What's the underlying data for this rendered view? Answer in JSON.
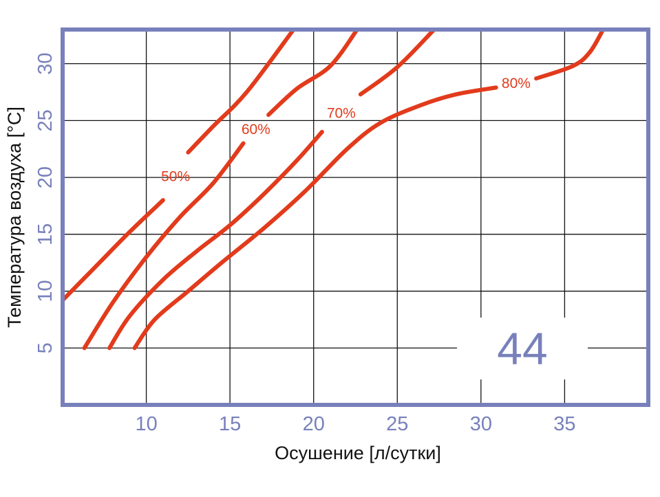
{
  "chart_data": {
    "type": "line",
    "xlabel": "Осушение [л/сутки]",
    "ylabel": "Температура воздуха [°C]",
    "xlim": [
      5,
      40
    ],
    "ylim": [
      0,
      33
    ],
    "xticks": [
      10,
      15,
      20,
      25,
      30,
      35
    ],
    "yticks": [
      5,
      10,
      15,
      20,
      25,
      30
    ],
    "grid": true,
    "annotation": "44",
    "colors": {
      "curve": "#e23b1c",
      "frame": "#7880bb",
      "grid": "#111111"
    },
    "series": [
      {
        "name": "50%",
        "points": [
          [
            5,
            9.2
          ],
          [
            7,
            12.2
          ],
          [
            9,
            15.2
          ],
          [
            11,
            18
          ],
          [
            12.5,
            22.2
          ],
          [
            14,
            24.5
          ],
          [
            16,
            27.5
          ],
          [
            18.8,
            33
          ]
        ]
      },
      {
        "name": "60%",
        "points": [
          [
            6.3,
            5
          ],
          [
            8,
            9
          ],
          [
            10,
            13
          ],
          [
            12,
            16.5
          ],
          [
            14,
            19.5
          ],
          [
            15.8,
            23
          ],
          [
            17.3,
            25.5
          ],
          [
            19,
            27.8
          ],
          [
            21,
            29.8
          ],
          [
            22.6,
            33
          ]
        ]
      },
      {
        "name": "70%",
        "points": [
          [
            7.8,
            5
          ],
          [
            9,
            7.8
          ],
          [
            11,
            11
          ],
          [
            13,
            13.5
          ],
          [
            15,
            15.8
          ],
          [
            17,
            18.5
          ],
          [
            19,
            21.5
          ],
          [
            20.5,
            24
          ],
          [
            21.8,
            25.8
          ],
          [
            22.8,
            27.3
          ],
          [
            25,
            29.7
          ],
          [
            27.2,
            33
          ]
        ]
      },
      {
        "name": "80%",
        "points": [
          [
            9.3,
            5
          ],
          [
            10.5,
            7.5
          ],
          [
            12.5,
            10
          ],
          [
            14.5,
            12.5
          ],
          [
            17,
            15.5
          ],
          [
            19.5,
            18.8
          ],
          [
            22,
            22.5
          ],
          [
            24,
            24.8
          ],
          [
            26.5,
            26.4
          ],
          [
            28.5,
            27.3
          ],
          [
            30.9,
            27.9
          ],
          [
            33.3,
            28.7
          ],
          [
            35.5,
            29.8
          ],
          [
            36.5,
            31
          ],
          [
            37.3,
            33
          ]
        ]
      }
    ]
  }
}
